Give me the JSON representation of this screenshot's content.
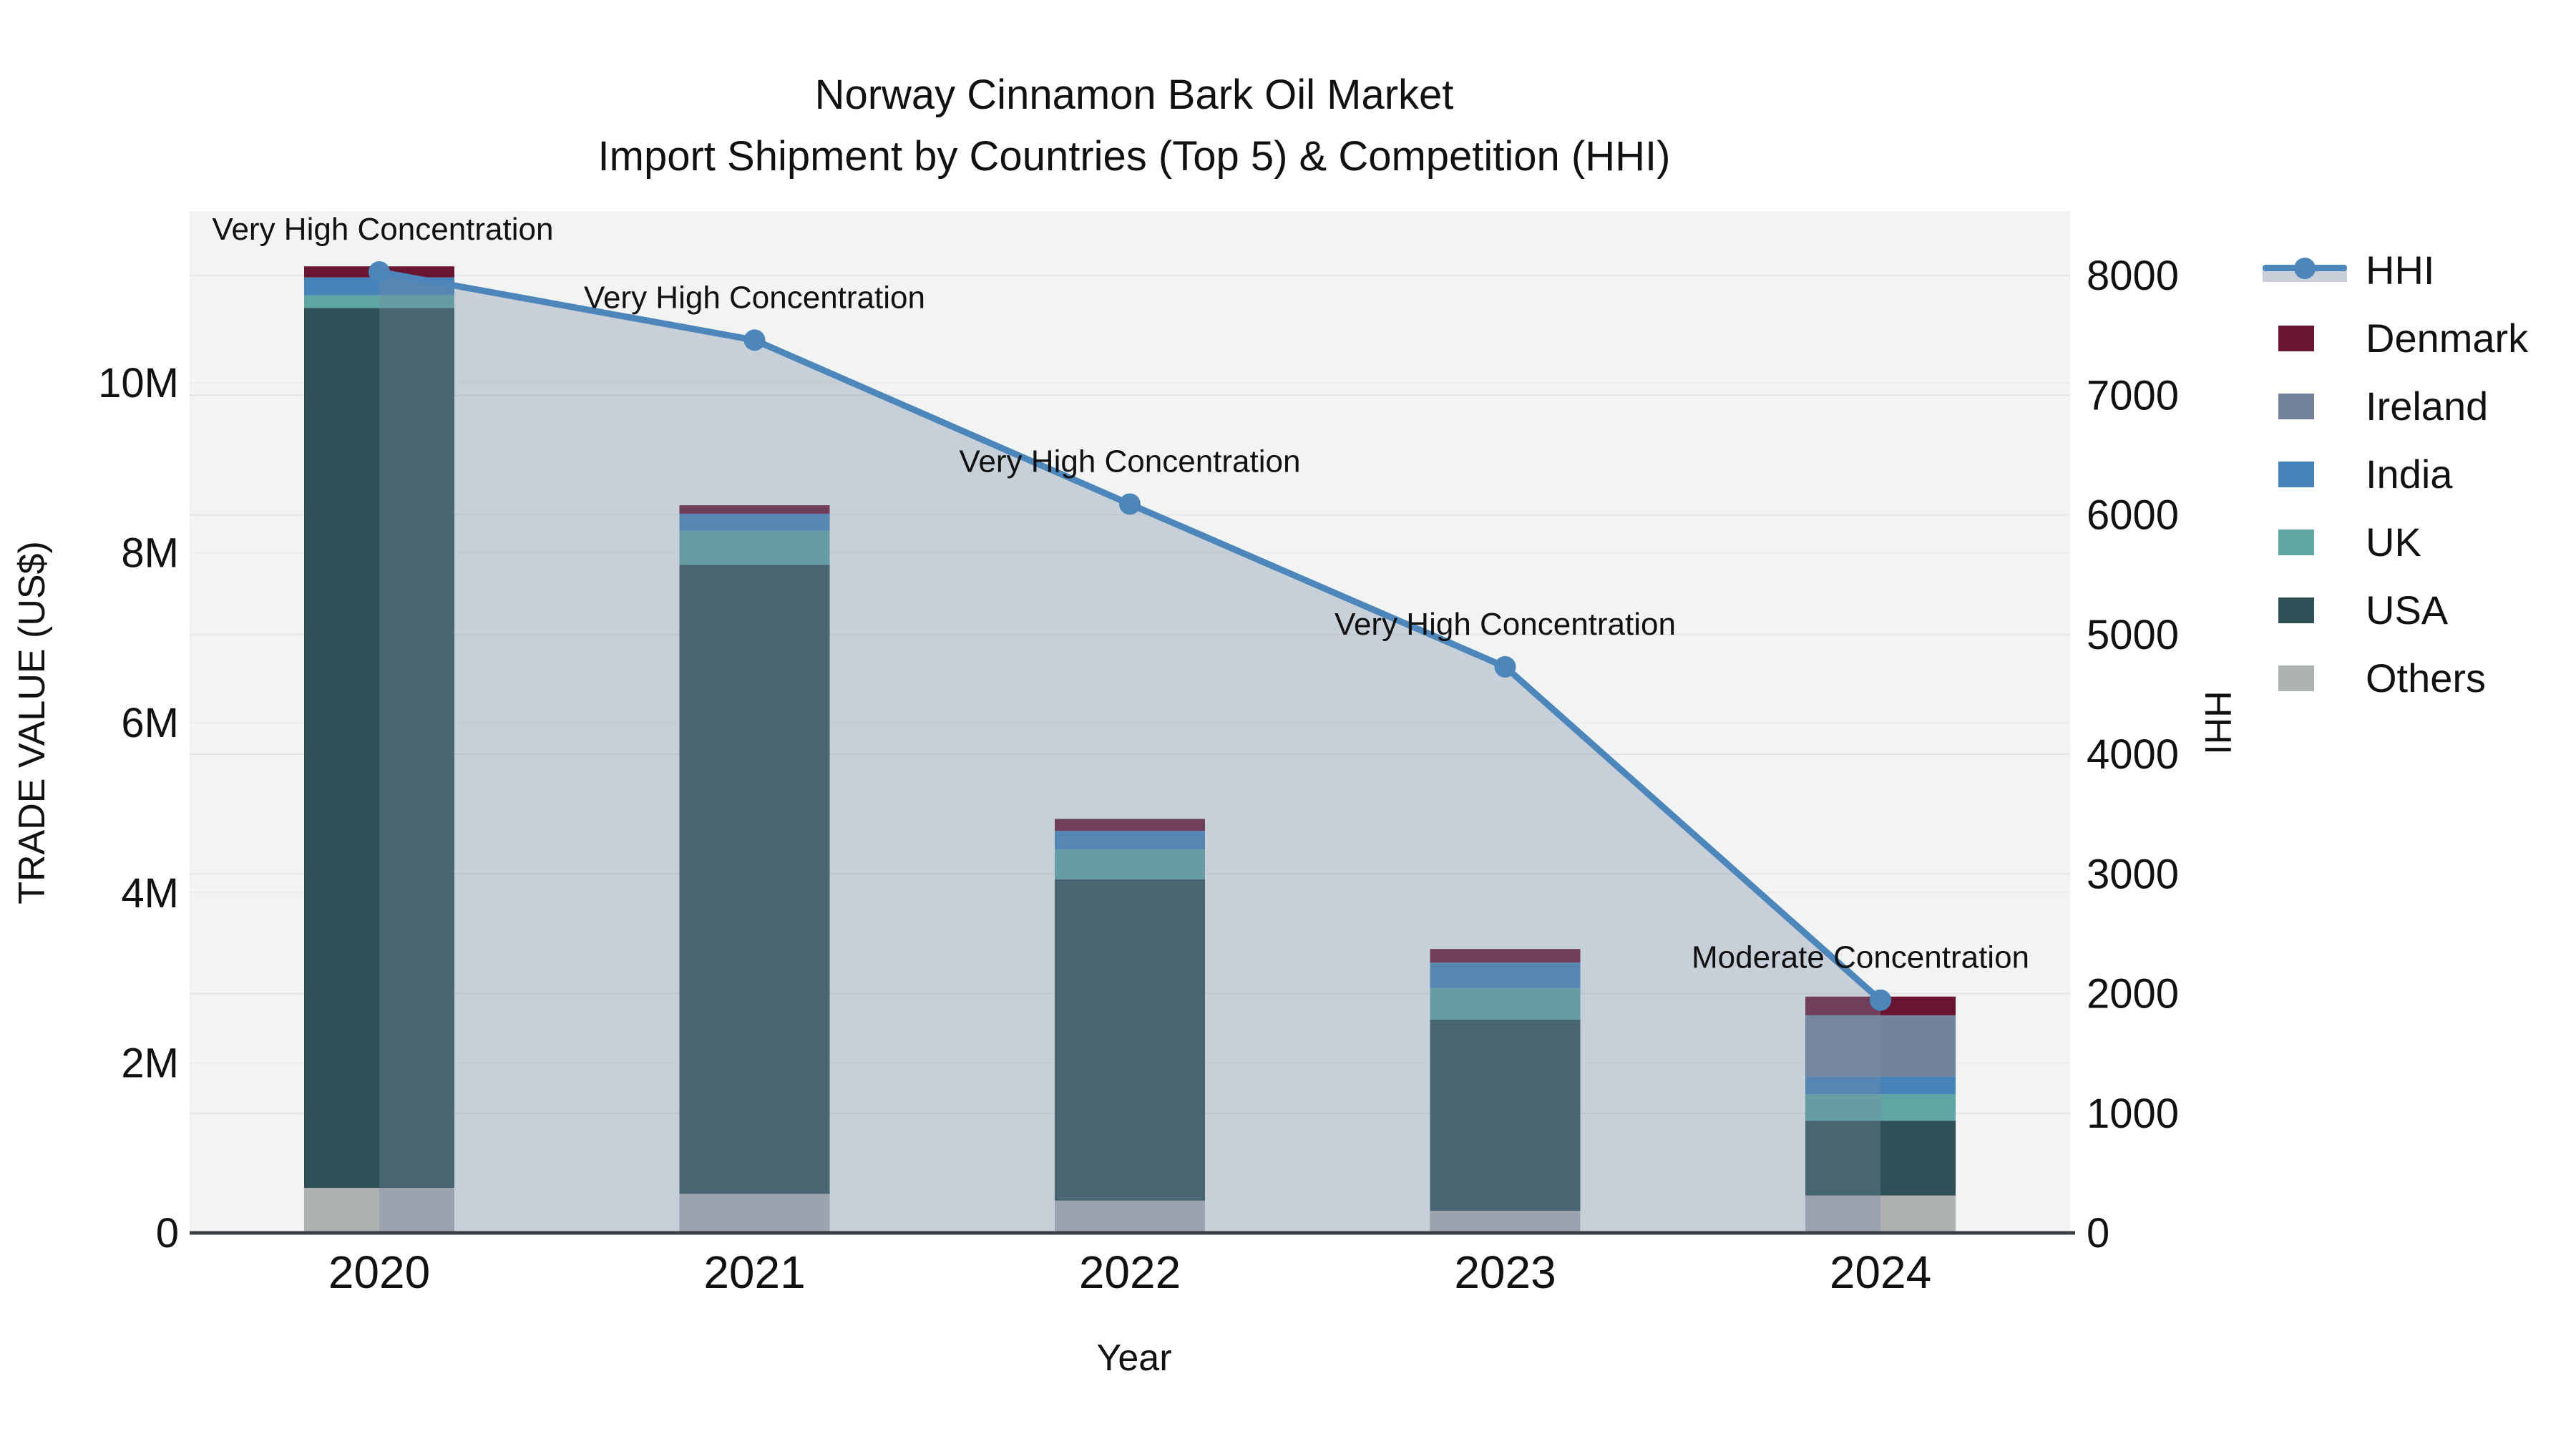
{
  "title": {
    "line1": "Norway Cinnamon Bark Oil Market",
    "line2": "Import Shipment by Countries (Top 5) & Competition (HHI)"
  },
  "chart_data": {
    "type": "combo: stacked-bar + line-area",
    "categories": [
      "2020",
      "2021",
      "2022",
      "2023",
      "2024"
    ],
    "x": {
      "title": "Year"
    },
    "y_left": {
      "title": "TRADE VALUE (US$)",
      "ticks": [
        "0",
        "2M",
        "4M",
        "6M",
        "8M",
        "10M"
      ],
      "tick_values": [
        0,
        2,
        4,
        6,
        8,
        10
      ],
      "range_musd": [
        0,
        12.0
      ],
      "grid": true
    },
    "y_right": {
      "title": "HHI",
      "ticks": [
        "0",
        "1000",
        "2000",
        "3000",
        "4000",
        "5000",
        "6000",
        "7000",
        "8000"
      ],
      "tick_values": [
        0,
        1000,
        2000,
        3000,
        4000,
        5000,
        6000,
        7000,
        8000
      ],
      "range": [
        0,
        8540
      ],
      "grid": true
    },
    "bar_series": [
      {
        "name": "Others",
        "color": "#AEB1B2",
        "values_musd": [
          0.53,
          0.46,
          0.38,
          0.26,
          0.44
        ]
      },
      {
        "name": "USA",
        "color": "#2F5056",
        "values_musd": [
          10.35,
          7.4,
          3.78,
          2.25,
          0.88
        ]
      },
      {
        "name": "UK",
        "color": "#5FA5A3",
        "values_musd": [
          0.15,
          0.4,
          0.35,
          0.37,
          0.31
        ]
      },
      {
        "name": "India",
        "color": "#4583B8",
        "values_musd": [
          0.21,
          0.2,
          0.22,
          0.3,
          0.21
        ]
      },
      {
        "name": "Ireland",
        "color": "#72849A",
        "values_musd": [
          0.0,
          0.0,
          0.0,
          0.0,
          0.72
        ]
      },
      {
        "name": "Denmark",
        "color": "#6A1434",
        "values_musd": [
          0.13,
          0.1,
          0.14,
          0.16,
          0.22
        ]
      }
    ],
    "bar_totals_musd": [
      11.37,
      8.56,
      4.87,
      3.34,
      2.78
    ],
    "line_series": {
      "name": "HHI",
      "color": "#4C86BB",
      "area_fill": "rgba(120,140,165,0.35)",
      "values": [
        8030,
        7460,
        6090,
        4730,
        1945
      ]
    },
    "annotations": [
      "Very High Concentration",
      "Very High Concentration",
      "Very High Concentration",
      "Very High Concentration",
      "Moderate Concentration"
    ],
    "legend": [
      {
        "label": "HHI",
        "color": "#4C86BB",
        "type": "line"
      },
      {
        "label": "Denmark",
        "color": "#6A1434",
        "type": "bar"
      },
      {
        "label": "Ireland",
        "color": "#72849A",
        "type": "bar"
      },
      {
        "label": "India",
        "color": "#4583B8",
        "type": "bar"
      },
      {
        "label": "UK",
        "color": "#5FA5A3",
        "type": "bar"
      },
      {
        "label": "USA",
        "color": "#2F5056",
        "type": "bar"
      },
      {
        "label": "Others",
        "color": "#AEB1B2",
        "type": "bar"
      }
    ],
    "plot_background": "#F2F3F3",
    "axis_line_color": "#3C3F42"
  }
}
